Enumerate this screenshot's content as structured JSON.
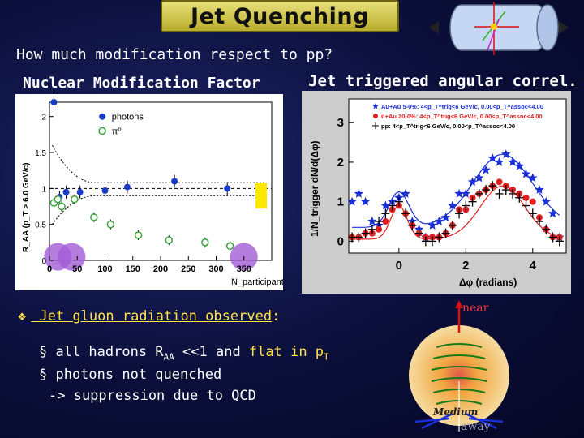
{
  "title": "Jet Quenching",
  "subtitle": "How much modification respect to pp?",
  "left_label": "Nuclear Modification  Factor",
  "right_label": "Jet triggered angular correl.",
  "bullet": {
    "text_lead": " Jet gluon radiation observed",
    "text_tail": ":"
  },
  "subpoints": [
    {
      "marker": "§",
      "part1": " all hadrons R",
      "sub": "AA",
      "part2": " <<1 and ",
      "hl1": "flat in p",
      "hl1_sub": "T"
    },
    {
      "marker": "§",
      "part1": " photons not quenched"
    },
    {
      "marker": "",
      "part1": "-> suppression due to QCD"
    }
  ],
  "diagram": {
    "near": "near",
    "away": "away",
    "medium": "Medium"
  },
  "colors": {
    "title_bg": "#d6cc4c",
    "highlight": "#ffe14a",
    "photons": "#1a3cc8",
    "pi0": "#3aa23a",
    "au_au": "#1a2fd6",
    "d_au": "#e02020",
    "pp": "#000000"
  },
  "chart_data": [
    {
      "type": "scatter",
      "title": "",
      "xlabel": "N_participant",
      "ylabel": "R_AA (p_T > 6.0 GeV/c)",
      "xlim": [
        0,
        400
      ],
      "ylim": [
        0,
        2.2
      ],
      "x_ticks": [
        "0",
        "50",
        "100",
        "150",
        "200",
        "250",
        "300",
        "350"
      ],
      "y_ticks": [
        "0",
        "0.5",
        "1",
        "1.5",
        "2"
      ],
      "legend": [
        "photons",
        "π⁰"
      ],
      "series": [
        {
          "name": "photons",
          "marker": "filled-circle",
          "x": [
            8,
            18,
            30,
            55,
            100,
            140,
            225,
            320
          ],
          "y": [
            2.2,
            0.88,
            0.95,
            0.95,
            0.97,
            1.02,
            1.1,
            1.0
          ]
        },
        {
          "name": "π⁰",
          "marker": "open-circle",
          "x": [
            8,
            15,
            22,
            45,
            80,
            110,
            160,
            215,
            280,
            325
          ],
          "y": [
            0.8,
            0.85,
            0.75,
            0.85,
            0.6,
            0.5,
            0.35,
            0.28,
            0.25,
            0.2
          ]
        }
      ]
    },
    {
      "type": "scatter",
      "title": "",
      "xlabel": "Δφ (radians)",
      "ylabel": "1/N_trigger dN/d(Δφ)",
      "xlim": [
        -1.5,
        5
      ],
      "ylim": [
        -0.3,
        3.6
      ],
      "x_ticks": [
        "0",
        "2",
        "4"
      ],
      "y_ticks": [
        "0",
        "1",
        "2",
        "3"
      ],
      "legend": [
        "Au+Au 5-0%: 4<p_T^trig<6 GeV/c, 0.00<p_T^assoc<4.00",
        "d+Au 20-0%: 4<p_T^trig<6 GeV/c, 0.00<p_T^assoc<4.00",
        "pp: 4<p_T^trig<6 GeV/c, 0.00<p_T^assoc<4.00"
      ],
      "series": [
        {
          "name": "Au+Au 5-0%",
          "marker": "star",
          "x": [
            -1.4,
            -1.2,
            -1.0,
            -0.8,
            -0.6,
            -0.4,
            -0.2,
            0,
            0.2,
            0.4,
            0.6,
            0.8,
            1.0,
            1.2,
            1.4,
            1.6,
            1.8,
            2.0,
            2.2,
            2.4,
            2.6,
            2.8,
            3.0,
            3.2,
            3.4,
            3.6,
            3.8,
            4.0,
            4.2,
            4.4,
            4.6,
            4.8
          ],
          "y": [
            1.0,
            1.2,
            1.0,
            0.5,
            0.4,
            0.9,
            1.0,
            1.1,
            1.2,
            0.5,
            0.3,
            0.1,
            0.4,
            0.5,
            0.6,
            0.9,
            1.2,
            1.2,
            1.5,
            1.6,
            1.8,
            2.1,
            2.0,
            2.2,
            2.0,
            1.9,
            1.7,
            1.6,
            1.3,
            1.0,
            0.7,
            0.1
          ]
        },
        {
          "name": "d+Au 20-0%",
          "marker": "filled-circle",
          "x": [
            -1.4,
            -1.2,
            -1.0,
            -0.8,
            -0.6,
            -0.4,
            -0.2,
            0,
            0.2,
            0.4,
            0.6,
            0.8,
            1.0,
            1.2,
            1.4,
            1.6,
            1.8,
            2.0,
            2.2,
            2.4,
            2.6,
            2.8,
            3.0,
            3.2,
            3.4,
            3.6,
            3.8,
            4.0,
            4.2,
            4.4,
            4.6,
            4.8
          ],
          "y": [
            0.1,
            0.1,
            0.2,
            0.2,
            0.3,
            0.5,
            0.8,
            0.9,
            0.7,
            0.4,
            0.2,
            0.1,
            0.1,
            0.1,
            0.2,
            0.4,
            0.8,
            0.8,
            1.1,
            1.2,
            1.3,
            1.4,
            1.5,
            1.4,
            1.3,
            1.2,
            1.1,
            1.0,
            0.6,
            0.3,
            0.1,
            0.1
          ]
        },
        {
          "name": "pp",
          "marker": "cross",
          "x": [
            -1.4,
            -1.2,
            -1.0,
            -0.8,
            -0.6,
            -0.4,
            -0.2,
            0,
            0.2,
            0.4,
            0.6,
            0.8,
            1.0,
            1.2,
            1.4,
            1.6,
            1.8,
            2.0,
            2.2,
            2.4,
            2.6,
            2.8,
            3.0,
            3.2,
            3.4,
            3.6,
            3.8,
            4.0,
            4.2,
            4.4,
            4.6,
            4.8
          ],
          "y": [
            0.1,
            0.1,
            0.2,
            0.3,
            0.5,
            0.7,
            0.9,
            1.0,
            0.7,
            0.4,
            0.2,
            0.0,
            0.0,
            0.1,
            0.2,
            0.4,
            0.7,
            0.9,
            1.0,
            1.2,
            1.3,
            1.4,
            1.2,
            1.3,
            1.2,
            1.1,
            0.9,
            0.7,
            0.5,
            0.3,
            0.1,
            0.0
          ]
        }
      ]
    }
  ]
}
